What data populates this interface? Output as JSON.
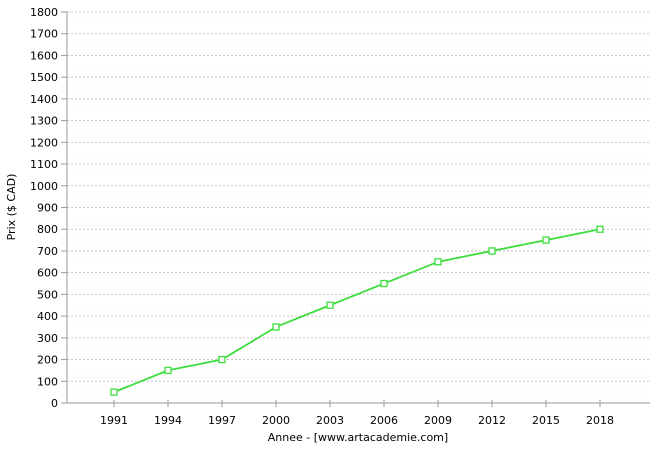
{
  "chart_data": {
    "type": "line",
    "title": "",
    "xlabel": "Annee - [www.artacademie.com]",
    "ylabel": "Prix ($ CAD)",
    "x": [
      "1991",
      "1994",
      "1997",
      "2000",
      "2003",
      "2006",
      "2009",
      "2012",
      "2015",
      "2018"
    ],
    "series": [
      {
        "name": "Prix",
        "values": [
          50,
          150,
          200,
          350,
          450,
          550,
          650,
          700,
          750,
          800
        ],
        "marker": "open-square"
      }
    ],
    "ylim": [
      0,
      1800
    ],
    "ytick_step": 100,
    "ytick_minor_step": 50,
    "grid": "horizontal",
    "legend": "none"
  },
  "colors": {
    "line": "#3ddd3d",
    "marker_fill": "#ffffff",
    "major_grid": "#c3c3c3",
    "minor_grid": "#ececec",
    "axis": "#9a9a9a",
    "text": "#000000",
    "background": "#ffffff"
  }
}
